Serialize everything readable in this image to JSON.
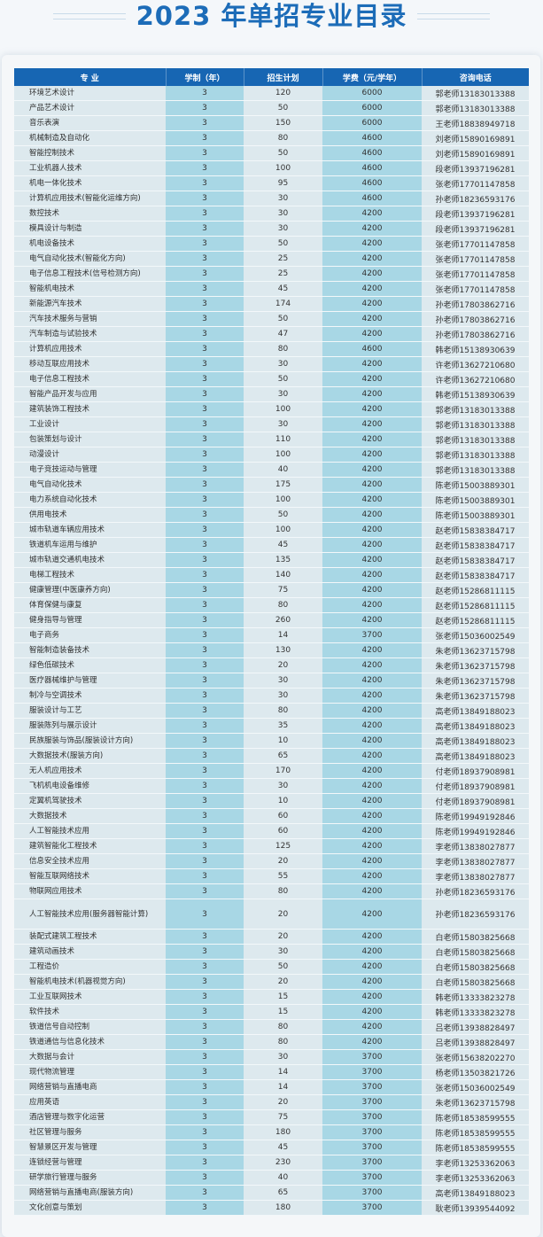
{
  "title": "2023 年单招专业目录",
  "table": {
    "headers": [
      "专  业",
      "学制（年）",
      "招生计划",
      "学费（元/学年）",
      "咨询电话"
    ],
    "rows": [
      [
        "环境艺术设计",
        "3",
        "120",
        "6000",
        "郭老师13183013388"
      ],
      [
        "产品艺术设计",
        "3",
        "50",
        "6000",
        "郭老师13183013388"
      ],
      [
        "音乐表演",
        "3",
        "150",
        "6000",
        "王老师18838949718"
      ],
      [
        "机械制造及自动化",
        "3",
        "80",
        "4600",
        "刘老师15890169891"
      ],
      [
        "智能控制技术",
        "3",
        "50",
        "4600",
        "刘老师15890169891"
      ],
      [
        "工业机器人技术",
        "3",
        "100",
        "4600",
        "段老师13937196281"
      ],
      [
        "机电一体化技术",
        "3",
        "95",
        "4600",
        "张老师17701147858"
      ],
      [
        "计算机应用技术(智能化运维方向)",
        "3",
        "30",
        "4600",
        "孙老师18236593176"
      ],
      [
        "数控技术",
        "3",
        "30",
        "4200",
        "段老师13937196281"
      ],
      [
        "模具设计与制造",
        "3",
        "30",
        "4200",
        "段老师13937196281"
      ],
      [
        "机电设备技术",
        "3",
        "50",
        "4200",
        "张老师17701147858"
      ],
      [
        "电气自动化技术(智能化方向)",
        "3",
        "25",
        "4200",
        "张老师17701147858"
      ],
      [
        "电子信息工程技术(信号检测方向)",
        "3",
        "25",
        "4200",
        "张老师17701147858"
      ],
      [
        "智能机电技术",
        "3",
        "45",
        "4200",
        "张老师17701147858"
      ],
      [
        "新能源汽车技术",
        "3",
        "174",
        "4200",
        "孙老师17803862716"
      ],
      [
        "汽车技术服务与营销",
        "3",
        "50",
        "4200",
        "孙老师17803862716"
      ],
      [
        "汽车制造与试验技术",
        "3",
        "47",
        "4200",
        "孙老师17803862716"
      ],
      [
        "计算机应用技术",
        "3",
        "80",
        "4600",
        "韩老师15138930639"
      ],
      [
        "移动互联应用技术",
        "3",
        "30",
        "4200",
        "许老师13627210680"
      ],
      [
        "电子信息工程技术",
        "3",
        "50",
        "4200",
        "许老师13627210680"
      ],
      [
        "智能产品开发与应用",
        "3",
        "30",
        "4200",
        "韩老师15138930639"
      ],
      [
        "建筑装饰工程技术",
        "3",
        "100",
        "4200",
        "郭老师13183013388"
      ],
      [
        "工业设计",
        "3",
        "30",
        "4200",
        "郭老师13183013388"
      ],
      [
        "包装策划与设计",
        "3",
        "110",
        "4200",
        "郭老师13183013388"
      ],
      [
        "动漫设计",
        "3",
        "100",
        "4200",
        "郭老师13183013388"
      ],
      [
        "电子竞技运动与管理",
        "3",
        "40",
        "4200",
        "郭老师13183013388"
      ],
      [
        "电气自动化技术",
        "3",
        "175",
        "4200",
        "陈老师15003889301"
      ],
      [
        "电力系统自动化技术",
        "3",
        "100",
        "4200",
        "陈老师15003889301"
      ],
      [
        "供用电技术",
        "3",
        "50",
        "4200",
        "陈老师15003889301"
      ],
      [
        "城市轨道车辆应用技术",
        "3",
        "100",
        "4200",
        "赵老师15838384717"
      ],
      [
        "铁道机车运用与维护",
        "3",
        "45",
        "4200",
        "赵老师15838384717"
      ],
      [
        "城市轨道交通机电技术",
        "3",
        "135",
        "4200",
        "赵老师15838384717"
      ],
      [
        "电梯工程技术",
        "3",
        "140",
        "4200",
        "赵老师15838384717"
      ],
      [
        "健康管理(中医康养方向)",
        "3",
        "75",
        "4200",
        "赵老师15286811115"
      ],
      [
        "体育保健与康复",
        "3",
        "80",
        "4200",
        "赵老师15286811115"
      ],
      [
        "健身指导与管理",
        "3",
        "260",
        "4200",
        "赵老师15286811115"
      ],
      [
        "电子商务",
        "3",
        "14",
        "3700",
        "张老师15036002549"
      ],
      [
        "智能制造装备技术",
        "3",
        "130",
        "4200",
        "朱老师13623715798"
      ],
      [
        "绿色低碳技术",
        "3",
        "20",
        "4200",
        "朱老师13623715798"
      ],
      [
        "医疗器械维护与管理",
        "3",
        "30",
        "4200",
        "朱老师13623715798"
      ],
      [
        "制冷与空调技术",
        "3",
        "30",
        "4200",
        "朱老师13623715798"
      ],
      [
        "服装设计与工艺",
        "3",
        "80",
        "4200",
        "高老师13849188023"
      ],
      [
        "服装陈列与展示设计",
        "3",
        "35",
        "4200",
        "高老师13849188023"
      ],
      [
        "民族服装与饰品(服装设计方向)",
        "3",
        "10",
        "4200",
        "高老师13849188023"
      ],
      [
        "大数据技术(服装方向)",
        "3",
        "65",
        "4200",
        "高老师13849188023"
      ],
      [
        "无人机应用技术",
        "3",
        "170",
        "4200",
        "付老师18937908981"
      ],
      [
        "飞机机电设备维修",
        "3",
        "30",
        "4200",
        "付老师18937908981"
      ],
      [
        "定翼机驾驶技术",
        "3",
        "10",
        "4200",
        "付老师18937908981"
      ],
      [
        "大数据技术",
        "3",
        "60",
        "4200",
        "陈老师19949192846"
      ],
      [
        "人工智能技术应用",
        "3",
        "60",
        "4200",
        "陈老师19949192846"
      ],
      [
        "建筑智能化工程技术",
        "3",
        "125",
        "4200",
        "李老师13838027877"
      ],
      [
        "信息安全技术应用",
        "3",
        "20",
        "4200",
        "李老师13838027877"
      ],
      [
        "智能互联网络技术",
        "3",
        "55",
        "4200",
        "李老师13838027877"
      ],
      [
        "物联网应用技术",
        "3",
        "80",
        "4200",
        "孙老师18236593176"
      ],
      [
        "人工智能技术应用(服务器智能计算)",
        "3",
        "20",
        "4200",
        "孙老师18236593176"
      ],
      [
        "装配式建筑工程技术",
        "3",
        "20",
        "4200",
        "白老师15803825668"
      ],
      [
        "建筑动画技术",
        "3",
        "30",
        "4200",
        "白老师15803825668"
      ],
      [
        "工程造价",
        "3",
        "50",
        "4200",
        "白老师15803825668"
      ],
      [
        "智能机电技术(机器视觉方向)",
        "3",
        "20",
        "4200",
        "白老师15803825668"
      ],
      [
        "工业互联网技术",
        "3",
        "15",
        "4200",
        "韩老师13333823278"
      ],
      [
        "软件技术",
        "3",
        "15",
        "4200",
        "韩老师13333823278"
      ],
      [
        "铁道信号自动控制",
        "3",
        "80",
        "4200",
        "吕老师13938828497"
      ],
      [
        "铁道通信与信息化技术",
        "3",
        "80",
        "4200",
        "吕老师13938828497"
      ],
      [
        "大数据与会计",
        "3",
        "30",
        "3700",
        "张老师15638202270"
      ],
      [
        "现代物流管理",
        "3",
        "14",
        "3700",
        "杨老师13503821726"
      ],
      [
        "网络营销与直播电商",
        "3",
        "14",
        "3700",
        "张老师15036002549"
      ],
      [
        "应用英语",
        "3",
        "20",
        "3700",
        "朱老师13623715798"
      ],
      [
        "酒店管理与数字化运营",
        "3",
        "75",
        "3700",
        "陈老师18538599555"
      ],
      [
        "社区管理与服务",
        "3",
        "180",
        "3700",
        "陈老师18538599555"
      ],
      [
        "智慧景区开发与管理",
        "3",
        "45",
        "3700",
        "陈老师18538599555"
      ],
      [
        "连锁经营与管理",
        "3",
        "230",
        "3700",
        "李老师13253362063"
      ],
      [
        "研学旅行管理与服务",
        "3",
        "40",
        "3700",
        "李老师13253362063"
      ],
      [
        "网络营销与直播电商(服装方向)",
        "3",
        "65",
        "3700",
        "高老师13849188023"
      ],
      [
        "文化创意与策划",
        "3",
        "180",
        "3700",
        "耿老师13939544092"
      ]
    ]
  },
  "colors": {
    "title": "#1c6cb8",
    "header_bg": "#1766b3",
    "highlight_col": "#a8d7e5",
    "plain_col": "#dde9ee"
  }
}
